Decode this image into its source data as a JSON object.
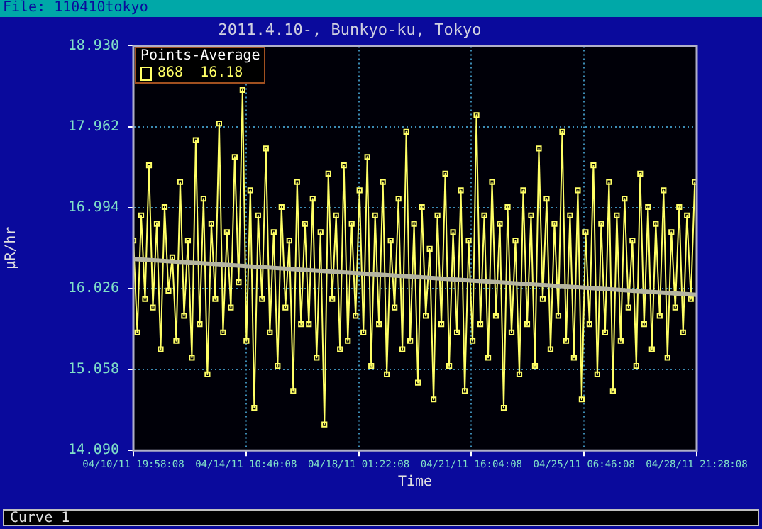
{
  "chart_data": {
    "type": "line",
    "title": "2011.4.10-, Bunkyo-ku, Tokyo",
    "xlabel": "Time",
    "ylabel": "μR/hr",
    "legend_title": "Points-Average",
    "legend": "top left",
    "grid": true,
    "marker": "square",
    "annotations": [
      "File: 110410tokyo",
      "Curve 1"
    ],
    "xlim": [
      "2011-04-10T19:58",
      "2011-04-28T21:28"
    ],
    "xticks": [
      {
        "value": "2011-04-10T19:58",
        "label": "04/10/11 19:58:08"
      },
      {
        "value": "2011-04-14T10:40",
        "label": "04/14/11 10:40:08"
      },
      {
        "value": "2011-04-18T01:22",
        "label": "04/18/11 01:22:08"
      },
      {
        "value": "2011-04-21T16:04",
        "label": "04/21/11 16:04:08"
      },
      {
        "value": "2011-04-25T06:46",
        "label": "04/25/11 06:46:08"
      },
      {
        "value": "2011-04-28T21:28",
        "label": "04/28/11 21:28:08"
      }
    ],
    "ylim": [
      14.09,
      18.93
    ],
    "yticks": [
      {
        "value": 14.09,
        "label": "14.090"
      },
      {
        "value": 15.058,
        "label": "15.058"
      },
      {
        "value": 16.026,
        "label": "16.026"
      },
      {
        "value": 16.994,
        "label": "16.994"
      },
      {
        "value": 17.962,
        "label": "17.962"
      },
      {
        "value": 18.93,
        "label": "18.930"
      }
    ],
    "x": [
      "2011-04-10T19:58",
      "2011-04-10T22:58",
      "2011-04-11T01:58",
      "2011-04-11T04:58",
      "2011-04-11T07:58",
      "2011-04-11T10:58",
      "2011-04-11T13:58",
      "2011-04-11T16:58",
      "2011-04-11T19:58",
      "2011-04-11T22:58",
      "2011-04-12T01:58",
      "2011-04-12T04:58",
      "2011-04-12T07:58",
      "2011-04-12T10:58",
      "2011-04-12T13:58",
      "2011-04-12T16:58",
      "2011-04-12T19:58",
      "2011-04-12T22:58",
      "2011-04-13T01:58",
      "2011-04-13T04:58",
      "2011-04-13T07:58",
      "2011-04-13T10:58",
      "2011-04-13T13:58",
      "2011-04-13T16:58",
      "2011-04-13T19:58",
      "2011-04-13T22:58",
      "2011-04-14T01:58",
      "2011-04-14T04:58",
      "2011-04-14T07:58",
      "2011-04-14T10:58",
      "2011-04-14T13:58",
      "2011-04-14T16:58",
      "2011-04-14T19:58",
      "2011-04-14T22:58",
      "2011-04-15T01:58",
      "2011-04-15T04:58",
      "2011-04-15T07:58",
      "2011-04-15T10:58",
      "2011-04-15T13:58",
      "2011-04-15T16:58",
      "2011-04-15T19:58",
      "2011-04-15T22:58",
      "2011-04-16T01:58",
      "2011-04-16T04:58",
      "2011-04-16T07:58",
      "2011-04-16T10:58",
      "2011-04-16T13:58",
      "2011-04-16T16:58",
      "2011-04-16T19:58",
      "2011-04-16T22:58",
      "2011-04-17T01:58",
      "2011-04-17T04:58",
      "2011-04-17T07:58",
      "2011-04-17T10:58",
      "2011-04-17T13:58",
      "2011-04-17T16:58",
      "2011-04-17T19:58",
      "2011-04-17T22:58",
      "2011-04-18T01:58",
      "2011-04-18T04:58",
      "2011-04-18T07:58",
      "2011-04-18T10:58",
      "2011-04-18T13:58",
      "2011-04-18T16:58",
      "2011-04-18T19:58",
      "2011-04-18T22:58",
      "2011-04-19T01:58",
      "2011-04-19T04:58",
      "2011-04-19T07:58",
      "2011-04-19T10:58",
      "2011-04-19T13:58",
      "2011-04-19T16:58",
      "2011-04-19T19:58",
      "2011-04-19T22:58",
      "2011-04-20T01:58",
      "2011-04-20T04:58",
      "2011-04-20T07:58",
      "2011-04-20T10:58",
      "2011-04-20T13:58",
      "2011-04-20T16:58",
      "2011-04-20T19:58",
      "2011-04-20T22:58",
      "2011-04-21T01:58",
      "2011-04-21T04:58",
      "2011-04-21T07:58",
      "2011-04-21T10:58",
      "2011-04-21T13:58",
      "2011-04-21T16:58",
      "2011-04-21T19:58",
      "2011-04-21T22:58",
      "2011-04-22T01:58",
      "2011-04-22T04:58",
      "2011-04-22T07:58",
      "2011-04-22T10:58",
      "2011-04-22T13:58",
      "2011-04-22T16:58",
      "2011-04-22T19:58",
      "2011-04-22T22:58",
      "2011-04-23T01:58",
      "2011-04-23T04:58",
      "2011-04-23T07:58",
      "2011-04-23T10:58",
      "2011-04-23T13:58",
      "2011-04-23T16:58",
      "2011-04-23T19:58",
      "2011-04-23T22:58",
      "2011-04-24T01:58",
      "2011-04-24T04:58",
      "2011-04-24T07:58",
      "2011-04-24T10:58",
      "2011-04-24T13:58",
      "2011-04-24T16:58",
      "2011-04-24T19:58",
      "2011-04-24T22:58",
      "2011-04-25T01:58",
      "2011-04-25T04:58",
      "2011-04-25T07:58",
      "2011-04-25T10:58",
      "2011-04-25T13:58",
      "2011-04-25T16:58",
      "2011-04-25T19:58",
      "2011-04-25T22:58",
      "2011-04-26T01:58",
      "2011-04-26T04:58",
      "2011-04-26T07:58",
      "2011-04-26T10:58",
      "2011-04-26T13:58",
      "2011-04-26T16:58",
      "2011-04-26T19:58",
      "2011-04-26T22:58",
      "2011-04-27T01:58",
      "2011-04-27T04:58",
      "2011-04-27T07:58",
      "2011-04-27T10:58",
      "2011-04-27T13:58",
      "2011-04-27T16:58",
      "2011-04-27T19:58",
      "2011-04-27T22:58",
      "2011-04-28T01:58",
      "2011-04-28T04:58",
      "2011-04-28T07:58",
      "2011-04-28T10:58",
      "2011-04-28T13:58",
      "2011-04-28T16:58",
      "2011-04-28T19:58"
    ],
    "series": [
      {
        "name": "868  16.18",
        "color": "#ffff66",
        "values": [
          16.6,
          15.5,
          16.9,
          15.9,
          17.5,
          15.8,
          16.8,
          15.3,
          17.0,
          16.0,
          16.4,
          15.4,
          17.3,
          15.7,
          16.6,
          15.2,
          17.8,
          15.6,
          17.1,
          15.0,
          16.8,
          15.9,
          18.0,
          15.5,
          16.7,
          15.8,
          17.6,
          16.1,
          18.4,
          15.4,
          17.2,
          14.6,
          16.9,
          15.9,
          17.7,
          15.5,
          16.7,
          15.1,
          17.0,
          15.8,
          16.6,
          14.8,
          17.3,
          15.6,
          16.8,
          15.6,
          17.1,
          15.2,
          16.7,
          14.4,
          17.4,
          15.9,
          16.9,
          15.3,
          17.5,
          15.4,
          16.8,
          15.7,
          17.2,
          15.5,
          17.6,
          15.1,
          16.9,
          15.6,
          17.3,
          15.0,
          16.6,
          15.8,
          17.1,
          15.3,
          17.9,
          15.4,
          16.8,
          14.9,
          17.0,
          15.7,
          16.5,
          14.7,
          16.9,
          15.6,
          17.4,
          15.1,
          16.7,
          15.5,
          17.2,
          14.8,
          16.6,
          15.4,
          18.1,
          15.6,
          16.9,
          15.2,
          17.3,
          15.7,
          16.8,
          14.6,
          17.0,
          15.5,
          16.6,
          15.0,
          17.2,
          15.6,
          16.9,
          15.1,
          17.7,
          15.9,
          17.1,
          15.3,
          16.8,
          15.7,
          17.9,
          15.4,
          16.9,
          15.2,
          17.2,
          14.7,
          16.7,
          15.6,
          17.5,
          15.0,
          16.8,
          15.5,
          17.3,
          14.8,
          16.9,
          15.4,
          17.1,
          15.8,
          16.6,
          15.1,
          17.4,
          15.6,
          17.0,
          15.3,
          16.8,
          15.7,
          17.2,
          15.2,
          16.7,
          15.8,
          17.0,
          15.5,
          16.9,
          15.9,
          17.3
        ]
      },
      {
        "type": "line",
        "marker": "none",
        "color": "#b4b4a0",
        "x": [
          "2011-04-10T19:58",
          "2011-04-28T21:28"
        ],
        "values": [
          16.38,
          15.95
        ]
      }
    ]
  }
}
